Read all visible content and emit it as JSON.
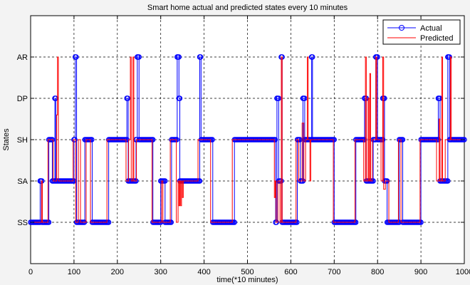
{
  "chart_data": {
    "type": "line",
    "title": "Smart home actual and predicted states every 10 minutes",
    "xlabel": "time(*10 minutes)",
    "ylabel": "States",
    "xlim": [
      0,
      1000
    ],
    "ylim": [
      0,
      6
    ],
    "grid": true,
    "legend_position": "top-right",
    "x_ticks": [
      0,
      100,
      200,
      300,
      400,
      500,
      600,
      700,
      800,
      900,
      1000
    ],
    "y_ticks": [
      {
        "value": 1,
        "label": "SS"
      },
      {
        "value": 2,
        "label": "SA"
      },
      {
        "value": 3,
        "label": "SH"
      },
      {
        "value": 4,
        "label": "DP"
      },
      {
        "value": 5,
        "label": "AR"
      }
    ],
    "series": [
      {
        "name": "Actual",
        "color": "#0000ff",
        "marker": "circle",
        "points": [
          [
            0,
            1
          ],
          [
            22,
            1
          ],
          [
            22,
            2
          ],
          [
            26,
            2
          ],
          [
            26,
            1
          ],
          [
            42,
            1
          ],
          [
            42,
            3
          ],
          [
            50,
            3
          ],
          [
            50,
            2
          ],
          [
            56,
            2
          ],
          [
            56,
            4
          ],
          [
            58,
            4
          ],
          [
            58,
            2
          ],
          [
            100,
            2
          ],
          [
            100,
            3
          ],
          [
            103,
            3
          ],
          [
            103,
            5
          ],
          [
            106,
            5
          ],
          [
            106,
            1
          ],
          [
            125,
            1
          ],
          [
            125,
            3
          ],
          [
            142,
            3
          ],
          [
            142,
            1
          ],
          [
            180,
            1
          ],
          [
            180,
            3
          ],
          [
            222,
            3
          ],
          [
            222,
            4
          ],
          [
            225,
            4
          ],
          [
            225,
            2
          ],
          [
            243,
            2
          ],
          [
            243,
            3
          ],
          [
            246,
            3
          ],
          [
            246,
            5
          ],
          [
            250,
            5
          ],
          [
            250,
            3
          ],
          [
            282,
            3
          ],
          [
            282,
            1
          ],
          [
            300,
            1
          ],
          [
            300,
            2
          ],
          [
            310,
            2
          ],
          [
            310,
            1
          ],
          [
            325,
            1
          ],
          [
            325,
            3
          ],
          [
            338,
            3
          ],
          [
            338,
            5
          ],
          [
            342,
            5
          ],
          [
            342,
            4
          ],
          [
            344,
            4
          ],
          [
            344,
            2
          ],
          [
            390,
            2
          ],
          [
            390,
            5
          ],
          [
            393,
            5
          ],
          [
            393,
            3
          ],
          [
            420,
            3
          ],
          [
            420,
            1
          ],
          [
            470,
            1
          ],
          [
            470,
            3
          ],
          [
            565,
            3
          ],
          [
            565,
            1
          ],
          [
            568,
            1
          ],
          [
            568,
            4
          ],
          [
            572,
            4
          ],
          [
            572,
            2
          ],
          [
            578,
            2
          ],
          [
            578,
            5
          ],
          [
            580,
            5
          ],
          [
            580,
            1
          ],
          [
            615,
            1
          ],
          [
            615,
            3
          ],
          [
            622,
            3
          ],
          [
            622,
            2
          ],
          [
            628,
            2
          ],
          [
            628,
            4
          ],
          [
            632,
            4
          ],
          [
            632,
            3
          ],
          [
            648,
            3
          ],
          [
            648,
            5
          ],
          [
            650,
            5
          ],
          [
            650,
            3
          ],
          [
            700,
            3
          ],
          [
            700,
            1
          ],
          [
            750,
            1
          ],
          [
            750,
            3
          ],
          [
            770,
            3
          ],
          [
            770,
            4
          ],
          [
            774,
            4
          ],
          [
            774,
            2
          ],
          [
            790,
            2
          ],
          [
            790,
            3
          ],
          [
            796,
            3
          ],
          [
            796,
            5
          ],
          [
            800,
            5
          ],
          [
            800,
            3
          ],
          [
            812,
            3
          ],
          [
            812,
            4
          ],
          [
            816,
            4
          ],
          [
            816,
            2
          ],
          [
            822,
            2
          ],
          [
            822,
            1
          ],
          [
            850,
            1
          ],
          [
            850,
            3
          ],
          [
            858,
            3
          ],
          [
            858,
            1
          ],
          [
            900,
            1
          ],
          [
            900,
            3
          ],
          [
            940,
            3
          ],
          [
            940,
            4
          ],
          [
            944,
            4
          ],
          [
            944,
            2
          ],
          [
            962,
            2
          ],
          [
            962,
            5
          ],
          [
            966,
            5
          ],
          [
            966,
            3
          ],
          [
            1000,
            3
          ]
        ]
      },
      {
        "name": "Predicted",
        "color": "#ff0000",
        "points": [
          [
            0,
            1
          ],
          [
            25,
            1
          ],
          [
            25,
            2
          ],
          [
            27,
            2
          ],
          [
            27,
            1
          ],
          [
            40,
            1
          ],
          [
            40,
            3
          ],
          [
            52,
            3
          ],
          [
            52,
            2
          ],
          [
            60,
            2
          ],
          [
            60,
            3.6
          ],
          [
            62,
            3.6
          ],
          [
            62,
            5
          ],
          [
            64,
            5
          ],
          [
            64,
            2
          ],
          [
            98,
            2
          ],
          [
            98,
            3
          ],
          [
            104,
            3
          ],
          [
            104,
            1
          ],
          [
            110,
            1
          ],
          [
            110,
            3
          ],
          [
            115,
            3
          ],
          [
            115,
            1
          ],
          [
            128,
            1
          ],
          [
            128,
            3
          ],
          [
            138,
            3
          ],
          [
            138,
            1
          ],
          [
            176,
            1
          ],
          [
            176,
            3
          ],
          [
            220,
            3
          ],
          [
            220,
            2
          ],
          [
            226,
            2
          ],
          [
            226,
            3
          ],
          [
            230,
            3
          ],
          [
            230,
            5
          ],
          [
            232,
            5
          ],
          [
            232,
            2
          ],
          [
            236,
            2
          ],
          [
            236,
            5
          ],
          [
            238,
            5
          ],
          [
            238,
            2
          ],
          [
            244,
            2
          ],
          [
            244,
            3
          ],
          [
            280,
            3
          ],
          [
            280,
            1
          ],
          [
            302,
            1
          ],
          [
            302,
            2
          ],
          [
            305,
            2
          ],
          [
            305,
            1
          ],
          [
            322,
            1
          ],
          [
            322,
            3
          ],
          [
            336,
            3
          ],
          [
            336,
            1
          ],
          [
            340,
            1
          ],
          [
            340,
            2
          ],
          [
            342,
            2
          ],
          [
            342,
            1.4
          ],
          [
            344,
            1.4
          ],
          [
            344,
            2
          ],
          [
            346,
            2
          ],
          [
            346,
            1.4
          ],
          [
            348,
            1.4
          ],
          [
            348,
            2
          ],
          [
            350,
            2
          ],
          [
            350,
            1.6
          ],
          [
            352,
            1.6
          ],
          [
            352,
            2
          ],
          [
            386,
            2
          ],
          [
            386,
            3
          ],
          [
            415,
            3
          ],
          [
            415,
            1
          ],
          [
            465,
            1
          ],
          [
            465,
            3
          ],
          [
            562,
            3
          ],
          [
            562,
            1.6
          ],
          [
            564,
            1.6
          ],
          [
            564,
            2
          ],
          [
            566,
            2
          ],
          [
            566,
            1
          ],
          [
            570,
            1
          ],
          [
            570,
            2
          ],
          [
            575,
            2
          ],
          [
            575,
            1
          ],
          [
            578,
            1
          ],
          [
            578,
            5
          ],
          [
            580,
            5
          ],
          [
            580,
            1
          ],
          [
            612,
            1
          ],
          [
            612,
            3
          ],
          [
            618,
            3
          ],
          [
            618,
            2
          ],
          [
            626,
            2
          ],
          [
            626,
            3.4
          ],
          [
            630,
            3.4
          ],
          [
            630,
            2
          ],
          [
            634,
            2
          ],
          [
            634,
            3
          ],
          [
            638,
            3
          ],
          [
            638,
            5
          ],
          [
            640,
            5
          ],
          [
            640,
            3
          ],
          [
            644,
            3
          ],
          [
            644,
            2
          ],
          [
            646,
            2
          ],
          [
            646,
            3
          ],
          [
            698,
            3
          ],
          [
            698,
            1
          ],
          [
            748,
            1
          ],
          [
            748,
            3
          ],
          [
            768,
            3
          ],
          [
            768,
            2
          ],
          [
            772,
            2
          ],
          [
            772,
            5
          ],
          [
            774,
            5
          ],
          [
            774,
            2
          ],
          [
            778,
            2
          ],
          [
            778,
            4
          ],
          [
            780,
            4
          ],
          [
            780,
            2
          ],
          [
            782,
            2
          ],
          [
            782,
            4.6
          ],
          [
            784,
            4.6
          ],
          [
            784,
            2
          ],
          [
            788,
            2
          ],
          [
            788,
            3
          ],
          [
            796,
            3
          ],
          [
            796,
            5
          ],
          [
            798,
            5
          ],
          [
            798,
            3
          ],
          [
            808,
            3
          ],
          [
            808,
            2
          ],
          [
            812,
            2
          ],
          [
            812,
            5
          ],
          [
            814,
            5
          ],
          [
            814,
            1.8
          ],
          [
            818,
            1.8
          ],
          [
            818,
            2
          ],
          [
            826,
            2
          ],
          [
            826,
            1
          ],
          [
            848,
            1
          ],
          [
            848,
            3
          ],
          [
            854,
            3
          ],
          [
            854,
            1
          ],
          [
            898,
            1
          ],
          [
            898,
            3
          ],
          [
            936,
            3
          ],
          [
            936,
            2
          ],
          [
            942,
            2
          ],
          [
            942,
            3.5
          ],
          [
            944,
            3.5
          ],
          [
            944,
            2
          ],
          [
            948,
            2
          ],
          [
            948,
            5
          ],
          [
            950,
            5
          ],
          [
            950,
            2
          ],
          [
            956,
            2
          ],
          [
            956,
            3
          ],
          [
            968,
            3
          ],
          [
            968,
            5
          ],
          [
            970,
            5
          ],
          [
            970,
            3
          ],
          [
            1000,
            3
          ]
        ]
      }
    ]
  }
}
